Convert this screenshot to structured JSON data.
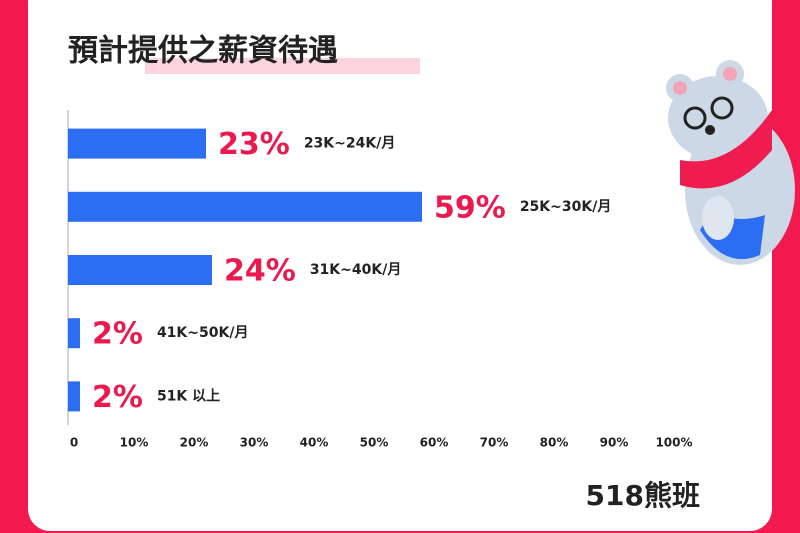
{
  "chart_data": {
    "type": "bar",
    "orientation": "horizontal",
    "title": "預計提供之薪資待遇",
    "categories": [
      "23K~24K/月",
      "25K~30K/月",
      "31K~40K/月",
      "41K~50K/月",
      "51K 以上"
    ],
    "values": [
      23,
      59,
      24,
      2,
      2
    ],
    "value_labels": [
      "23%",
      "59%",
      "24%",
      "2%",
      "2%"
    ],
    "color": "#2c6ef2",
    "label_color": "#ea1a4f",
    "xlim": [
      0,
      100
    ],
    "xticks": [
      0,
      {
        "value": 10,
        "label": "10%"
      },
      {
        "value": 20,
        "label": "20%"
      },
      {
        "value": 30,
        "label": "30%"
      },
      {
        "value": 40,
        "label": "40%"
      },
      {
        "value": 50,
        "label": "50%"
      },
      {
        "value": 60,
        "label": "60%"
      },
      {
        "value": 70,
        "label": "70%"
      },
      {
        "value": 80,
        "label": "80%"
      },
      {
        "value": 90,
        "label": "90%"
      },
      {
        "value": 100,
        "label": "100%"
      }
    ],
    "brand": "518熊班"
  }
}
